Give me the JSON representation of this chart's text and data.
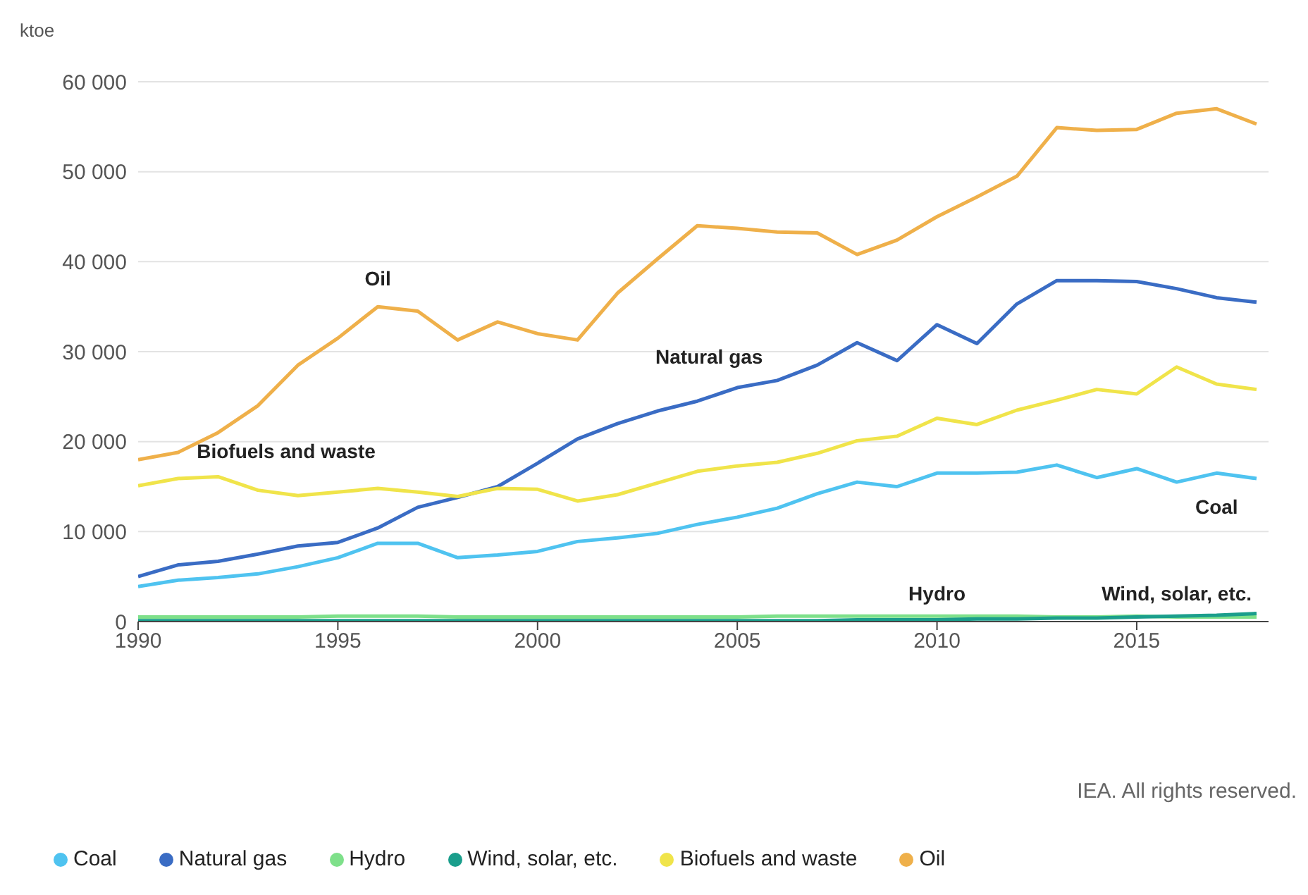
{
  "chart_data": {
    "type": "line",
    "ylabel": "ktoe",
    "x": [
      1990,
      1991,
      1992,
      1993,
      1994,
      1995,
      1996,
      1997,
      1998,
      1999,
      2000,
      2001,
      2002,
      2003,
      2004,
      2005,
      2006,
      2007,
      2008,
      2009,
      2010,
      2011,
      2012,
      2013,
      2014,
      2015,
      2016,
      2017,
      2018
    ],
    "series": [
      {
        "name": "Coal",
        "color": "#4fc3f0",
        "values": [
          3900,
          4600,
          4900,
          5300,
          6100,
          7100,
          8700,
          8700,
          7100,
          7400,
          7800,
          8900,
          9300,
          9800,
          10800,
          11600,
          12600,
          14200,
          15500,
          15000,
          16500,
          16500,
          16600,
          17400,
          16000,
          17000,
          15500,
          16500,
          15900
        ]
      },
      {
        "name": "Natural gas",
        "color": "#3a6cc4",
        "values": [
          5000,
          6300,
          6700,
          7500,
          8400,
          8800,
          10400,
          12700,
          13800,
          15000,
          17600,
          20300,
          22000,
          23400,
          24500,
          26000,
          26800,
          28500,
          31000,
          29000,
          33000,
          30900,
          35300,
          37900,
          37900,
          37800,
          37000,
          36000,
          35500
        ]
      },
      {
        "name": "Hydro",
        "color": "#7ee08a",
        "values": [
          500,
          500,
          500,
          500,
          500,
          600,
          600,
          600,
          500,
          500,
          500,
          500,
          500,
          500,
          500,
          500,
          600,
          600,
          600,
          600,
          600,
          600,
          600,
          500,
          500,
          600,
          500,
          500,
          500
        ]
      },
      {
        "name": "Wind, solar, etc.",
        "color": "#1a9e8c",
        "values": [
          100,
          100,
          100,
          100,
          100,
          100,
          100,
          100,
          100,
          100,
          100,
          100,
          100,
          100,
          100,
          100,
          100,
          100,
          200,
          200,
          200,
          300,
          300,
          400,
          400,
          500,
          600,
          700,
          900
        ]
      },
      {
        "name": "Biofuels and waste",
        "color": "#f0e44a",
        "values": [
          15100,
          15900,
          16100,
          14600,
          14000,
          14400,
          14800,
          14400,
          13900,
          14800,
          14700,
          13400,
          14100,
          15400,
          16700,
          17300,
          17700,
          18700,
          20100,
          20600,
          22600,
          21900,
          23500,
          24600,
          25800,
          25300,
          28300,
          26400,
          25800
        ]
      },
      {
        "name": "Oil",
        "color": "#efb04a",
        "values": [
          18000,
          18800,
          21000,
          24000,
          28500,
          31500,
          35000,
          34500,
          31300,
          33300,
          32000,
          31300,
          36500,
          40300,
          44000,
          43700,
          43300,
          43200,
          40800,
          42400,
          45000,
          47200,
          49500,
          54900,
          54600,
          54700,
          56500,
          57000,
          55300
        ]
      }
    ],
    "xlim": [
      1990,
      2018.3
    ],
    "xticks": [
      1990,
      1995,
      2000,
      2005,
      2010,
      2015
    ],
    "ylim": [
      0,
      60000
    ],
    "yticks": [
      0,
      {
        "value": 10000,
        "label": "10 000"
      },
      {
        "value": 20000,
        "label": "20 000"
      },
      {
        "value": 30000,
        "label": "30 000"
      },
      {
        "value": 40000,
        "label": "40 000"
      },
      {
        "value": 50000,
        "label": "50 000"
      },
      {
        "value": 60000,
        "label": "60 000"
      }
    ],
    "grid": "y",
    "legend": "bottom",
    "marker": "none",
    "line_style": "solid",
    "annotations": [
      "IEA. All rights reserved."
    ]
  }
}
